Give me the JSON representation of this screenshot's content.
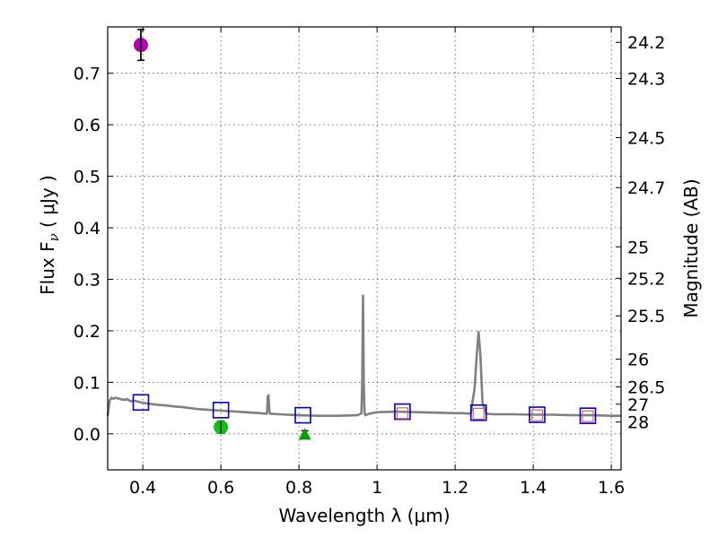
{
  "chart_data": {
    "type": "scatter",
    "title": "",
    "xlabel": "Wavelength  λ (μm)",
    "ylabel": "Flux  F",
    "ylabel_sub": "ν",
    "ylabel_unit": "  ( μJy )",
    "right_ylabel": "Magnitude (AB)",
    "xlim": [
      0.31,
      1.625
    ],
    "ylim": [
      -0.07,
      0.79
    ],
    "xticks": [
      "0.4",
      "0.6",
      "0.8",
      "1",
      "1.2",
      "1.4",
      "1.6"
    ],
    "yticks": [
      "0.0",
      "0.1",
      "0.2",
      "0.3",
      "0.4",
      "0.5",
      "0.6",
      "0.7"
    ],
    "right_ticks": [
      {
        "label": "24.2",
        "flux": 0.76
      },
      {
        "label": "24.3",
        "flux": 0.69
      },
      {
        "label": "24.5",
        "flux": 0.575
      },
      {
        "label": "24.7",
        "flux": 0.478
      },
      {
        "label": "25",
        "flux": 0.363
      },
      {
        "label": "25.2",
        "flux": 0.302
      },
      {
        "label": "25.5",
        "flux": 0.229
      },
      {
        "label": "26",
        "flux": 0.145
      },
      {
        "label": "26.5",
        "flux": 0.0912
      },
      {
        "label": "27",
        "flux": 0.0575
      },
      {
        "label": "28",
        "flux": 0.0229
      }
    ],
    "grid": true,
    "series": [
      {
        "name": "model spectrum",
        "kind": "line",
        "color": "#808080",
        "x": [
          0.31,
          0.315,
          0.32,
          0.325,
          0.33,
          0.34,
          0.35,
          0.36,
          0.37,
          0.38,
          0.39,
          0.4,
          0.42,
          0.44,
          0.46,
          0.48,
          0.5,
          0.52,
          0.54,
          0.56,
          0.58,
          0.6,
          0.62,
          0.64,
          0.66,
          0.68,
          0.7,
          0.718,
          0.72,
          0.722,
          0.724,
          0.726,
          0.75,
          0.8,
          0.85,
          0.9,
          0.95,
          0.96,
          0.962,
          0.964,
          0.966,
          0.968,
          0.97,
          0.98,
          1.0,
          1.05,
          1.1,
          1.15,
          1.2,
          1.22,
          1.24,
          1.25,
          1.255,
          1.26,
          1.265,
          1.27,
          1.28,
          1.3,
          1.35,
          1.4,
          1.45,
          1.5,
          1.55,
          1.6,
          1.625
        ],
        "y": [
          0.035,
          0.065,
          0.07,
          0.068,
          0.07,
          0.068,
          0.066,
          0.067,
          0.063,
          0.064,
          0.062,
          0.06,
          0.058,
          0.056,
          0.055,
          0.053,
          0.052,
          0.05,
          0.048,
          0.047,
          0.046,
          0.045,
          0.044,
          0.043,
          0.042,
          0.041,
          0.04,
          0.039,
          0.072,
          0.075,
          0.045,
          0.039,
          0.038,
          0.036,
          0.035,
          0.035,
          0.036,
          0.04,
          0.1,
          0.268,
          0.1,
          0.04,
          0.036,
          0.039,
          0.042,
          0.043,
          0.042,
          0.041,
          0.04,
          0.04,
          0.039,
          0.09,
          0.15,
          0.198,
          0.15,
          0.06,
          0.039,
          0.038,
          0.038,
          0.037,
          0.037,
          0.036,
          0.036,
          0.035,
          0.035
        ]
      },
      {
        "name": "model photometry",
        "kind": "open-square",
        "color": "#0000cc",
        "x": [
          0.395,
          0.6,
          0.81,
          1.065,
          1.26,
          1.41,
          1.54
        ],
        "y": [
          0.061,
          0.046,
          0.036,
          0.043,
          0.041,
          0.037,
          0.035
        ]
      },
      {
        "name": "observed (inner)",
        "kind": "open-square-small",
        "color": "#e06060",
        "x": [
          1.065,
          1.26,
          1.41,
          1.54
        ],
        "y": [
          0.04,
          0.039,
          0.036,
          0.034
        ]
      },
      {
        "name": "magenta point",
        "kind": "circle",
        "color": "#b000b0",
        "x": [
          0.395
        ],
        "y": [
          0.755
        ],
        "yerr": [
          0.03
        ]
      },
      {
        "name": "green point",
        "kind": "circle",
        "color": "#10c010",
        "x": [
          0.6
        ],
        "y": [
          0.013
        ],
        "yerr": [
          0.012
        ]
      },
      {
        "name": "green upper limit",
        "kind": "triangle",
        "color": "#00a000",
        "x": [
          0.815
        ],
        "y": [
          -0.001
        ],
        "yerr": [
          0.007
        ]
      }
    ]
  }
}
